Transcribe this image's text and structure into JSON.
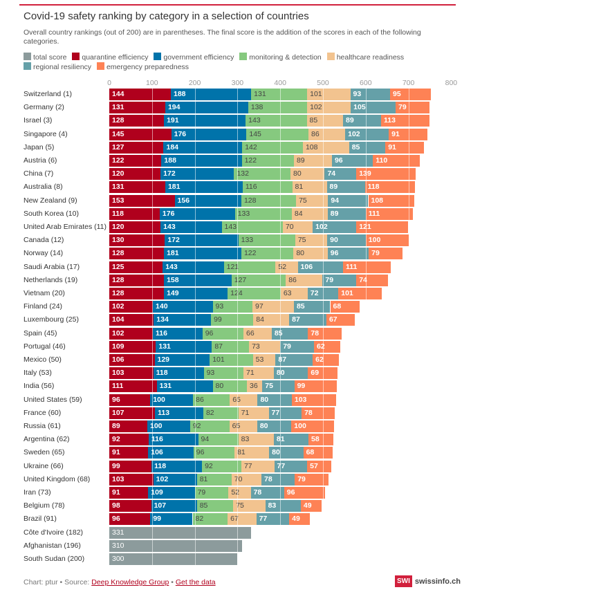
{
  "title": "Covid-19 safety ranking by category in a selection of countries",
  "subtitle": "Overall country rankings (out of 200) are in parentheses. The final score is the addition of the scores in each of the following categories.",
  "footer": {
    "prefix": "Chart: ptur • Source: ",
    "source": "Deep Knowledge Group",
    "sep": " • ",
    "data_link": "Get the data"
  },
  "logo": {
    "mark": "SWI",
    "site": "swissinfo.ch"
  },
  "chart_data": {
    "type": "bar",
    "orientation": "horizontal",
    "stacked": true,
    "title": "Covid-19 safety ranking by category in a selection of countries",
    "xlim": [
      0,
      800
    ],
    "xticks": [
      0,
      100,
      200,
      300,
      400,
      500,
      600,
      700,
      800
    ],
    "grid": true,
    "legend_placement": "top",
    "series": [
      {
        "name": "total score",
        "color": "#8c9b9c"
      },
      {
        "name": "quarantine efficiency",
        "color": "#b0001d"
      },
      {
        "name": "government efficiency",
        "color": "#0073aa"
      },
      {
        "name": "monitoring & detection",
        "color": "#86c97f"
      },
      {
        "name": "healthcare readiness",
        "color": "#f2c38f"
      },
      {
        "name": "regional resiliency",
        "color": "#65a0a8"
      },
      {
        "name": "emergency preparedness",
        "color": "#fe8255"
      }
    ],
    "rows": [
      {
        "label": "Switzerland (1)",
        "values": [
          144,
          188,
          131,
          101,
          93,
          95
        ]
      },
      {
        "label": "Germany (2)",
        "values": [
          131,
          194,
          138,
          102,
          105,
          79
        ]
      },
      {
        "label": "Israel (3)",
        "values": [
          128,
          191,
          143,
          85,
          89,
          113
        ]
      },
      {
        "label": "Singapore (4)",
        "values": [
          145,
          176,
          145,
          86,
          102,
          91
        ]
      },
      {
        "label": "Japan (5)",
        "values": [
          127,
          184,
          142,
          108,
          85,
          91
        ]
      },
      {
        "label": "Austria (6)",
        "values": [
          122,
          188,
          122,
          89,
          96,
          110
        ]
      },
      {
        "label": "China (7)",
        "values": [
          120,
          172,
          132,
          80,
          74,
          139
        ]
      },
      {
        "label": "Australia (8)",
        "values": [
          131,
          181,
          116,
          81,
          89,
          118
        ]
      },
      {
        "label": "New Zealand (9)",
        "values": [
          153,
          156,
          128,
          75,
          94,
          108
        ]
      },
      {
        "label": "South Korea (10)",
        "values": [
          118,
          176,
          133,
          84,
          89,
          111
        ]
      },
      {
        "label": "United Arab Emirates (11)",
        "values": [
          120,
          143,
          143,
          70,
          102,
          121
        ]
      },
      {
        "label": "Canada (12)",
        "values": [
          130,
          172,
          133,
          75,
          90,
          100
        ]
      },
      {
        "label": "Norway (14)",
        "values": [
          128,
          181,
          122,
          80,
          96,
          79
        ]
      },
      {
        "label": "Saudi Arabia (17)",
        "values": [
          125,
          143,
          121,
          52,
          106,
          111
        ]
      },
      {
        "label": "Netherlands (19)",
        "values": [
          128,
          158,
          127,
          86,
          79,
          74
        ]
      },
      {
        "label": "Vietnam (20)",
        "values": [
          128,
          149,
          124,
          63,
          72,
          101
        ]
      },
      {
        "label": "Finland (24)",
        "values": [
          102,
          140,
          93,
          97,
          85,
          68
        ]
      },
      {
        "label": "Luxembourg (25)",
        "values": [
          104,
          134,
          99,
          84,
          87,
          67
        ]
      },
      {
        "label": "Spain (45)",
        "values": [
          102,
          116,
          96,
          66,
          85,
          78
        ]
      },
      {
        "label": "Portugal (46)",
        "values": [
          109,
          131,
          87,
          73,
          79,
          62
        ]
      },
      {
        "label": "Mexico (50)",
        "values": [
          106,
          129,
          101,
          53,
          87,
          62
        ]
      },
      {
        "label": "Italy (53)",
        "values": [
          103,
          118,
          93,
          71,
          80,
          69
        ]
      },
      {
        "label": "India (56)",
        "values": [
          111,
          131,
          80,
          36,
          75,
          99
        ]
      },
      {
        "label": "United States (59)",
        "values": [
          96,
          100,
          86,
          65,
          80,
          103
        ]
      },
      {
        "label": "France (60)",
        "values": [
          107,
          113,
          82,
          71,
          77,
          78
        ]
      },
      {
        "label": "Russia (61)",
        "values": [
          89,
          100,
          92,
          65,
          80,
          100
        ]
      },
      {
        "label": "Argentina (62)",
        "values": [
          92,
          116,
          94,
          83,
          81,
          58
        ]
      },
      {
        "label": "Sweden (65)",
        "values": [
          91,
          106,
          96,
          81,
          80,
          68
        ]
      },
      {
        "label": "Ukraine (66)",
        "values": [
          99,
          118,
          92,
          77,
          77,
          57
        ]
      },
      {
        "label": "United Kingdom (68)",
        "values": [
          103,
          102,
          81,
          70,
          78,
          79
        ]
      },
      {
        "label": "Iran (73)",
        "values": [
          91,
          109,
          79,
          52,
          78,
          96
        ]
      },
      {
        "label": "Belgium (78)",
        "values": [
          98,
          107,
          85,
          75,
          83,
          49
        ]
      },
      {
        "label": "Brazil (91)",
        "values": [
          96,
          99,
          82,
          67,
          77,
          49
        ]
      },
      {
        "label": "Côte d'Ivoire (182)",
        "total": 331
      },
      {
        "label": "Afghanistan (196)",
        "total": 310
      },
      {
        "label": "South Sudan (200)",
        "total": 300
      }
    ]
  }
}
